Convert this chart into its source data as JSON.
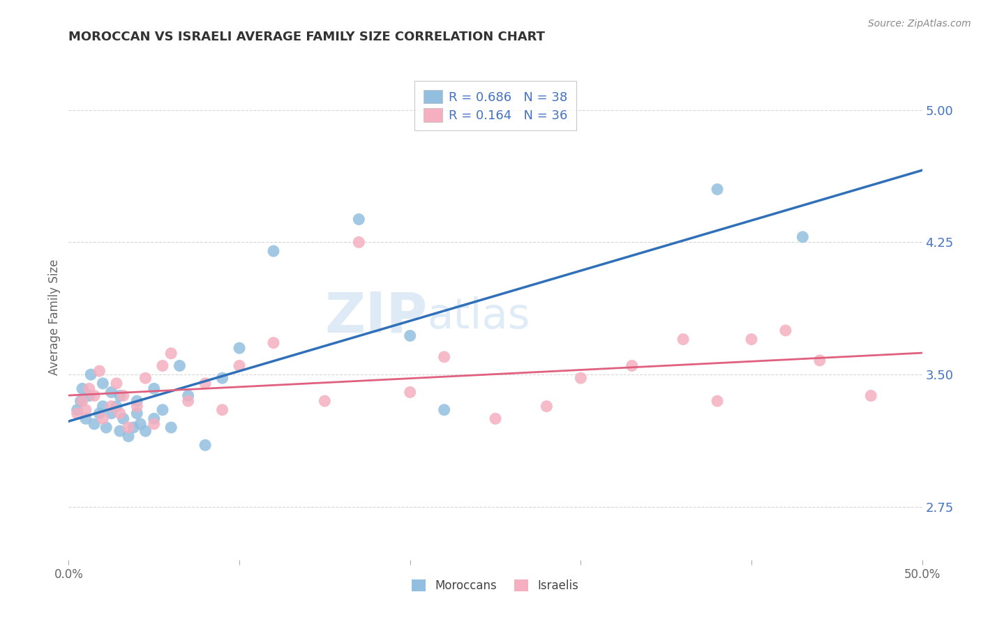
{
  "title": "MOROCCAN VS ISRAELI AVERAGE FAMILY SIZE CORRELATION CHART",
  "source_text": "Source: ZipAtlas.com",
  "ylabel": "Average Family Size",
  "xlim": [
    0.0,
    0.5
  ],
  "ylim": [
    2.45,
    5.2
  ],
  "yticks_right": [
    2.75,
    3.5,
    4.25,
    5.0
  ],
  "grid_color": "#cccccc",
  "background_color": "#ffffff",
  "moroccan_color": "#92bfe0",
  "israeli_color": "#f5afc0",
  "moroccan_line_color": "#3070b8",
  "israeli_line_color": "#e06080",
  "moroccan_R": 0.686,
  "moroccan_N": 38,
  "israeli_R": 0.164,
  "israeli_N": 36,
  "legend_label_moroccan": "Moroccans",
  "legend_label_israeli": "Israelis",
  "watermark_zip": "ZIP",
  "watermark_atlas": "atlas",
  "moroccan_x": [
    0.005,
    0.007,
    0.008,
    0.01,
    0.012,
    0.013,
    0.015,
    0.018,
    0.02,
    0.02,
    0.022,
    0.025,
    0.025,
    0.028,
    0.03,
    0.03,
    0.032,
    0.035,
    0.038,
    0.04,
    0.04,
    0.042,
    0.045,
    0.05,
    0.05,
    0.055,
    0.06,
    0.065,
    0.07,
    0.08,
    0.09,
    0.1,
    0.12,
    0.17,
    0.2,
    0.22,
    0.38,
    0.43
  ],
  "moroccan_y": [
    3.3,
    3.35,
    3.42,
    3.25,
    3.38,
    3.5,
    3.22,
    3.28,
    3.32,
    3.45,
    3.2,
    3.28,
    3.4,
    3.32,
    3.38,
    3.18,
    3.25,
    3.15,
    3.2,
    3.28,
    3.35,
    3.22,
    3.18,
    3.25,
    3.42,
    3.3,
    3.2,
    3.55,
    3.38,
    3.1,
    3.48,
    3.65,
    4.2,
    4.38,
    3.72,
    3.3,
    4.55,
    4.28
  ],
  "israeli_x": [
    0.005,
    0.008,
    0.01,
    0.012,
    0.015,
    0.018,
    0.02,
    0.025,
    0.028,
    0.03,
    0.032,
    0.035,
    0.04,
    0.045,
    0.05,
    0.055,
    0.06,
    0.07,
    0.08,
    0.09,
    0.1,
    0.12,
    0.15,
    0.17,
    0.2,
    0.22,
    0.25,
    0.28,
    0.3,
    0.33,
    0.36,
    0.38,
    0.4,
    0.42,
    0.44,
    0.47
  ],
  "israeli_y": [
    3.28,
    3.35,
    3.3,
    3.42,
    3.38,
    3.52,
    3.25,
    3.32,
    3.45,
    3.28,
    3.38,
    3.2,
    3.32,
    3.48,
    3.22,
    3.55,
    3.62,
    3.35,
    3.45,
    3.3,
    3.55,
    3.68,
    3.35,
    4.25,
    3.4,
    3.6,
    3.25,
    3.32,
    3.48,
    3.55,
    3.7,
    3.35,
    3.7,
    3.75,
    3.58,
    3.38
  ]
}
